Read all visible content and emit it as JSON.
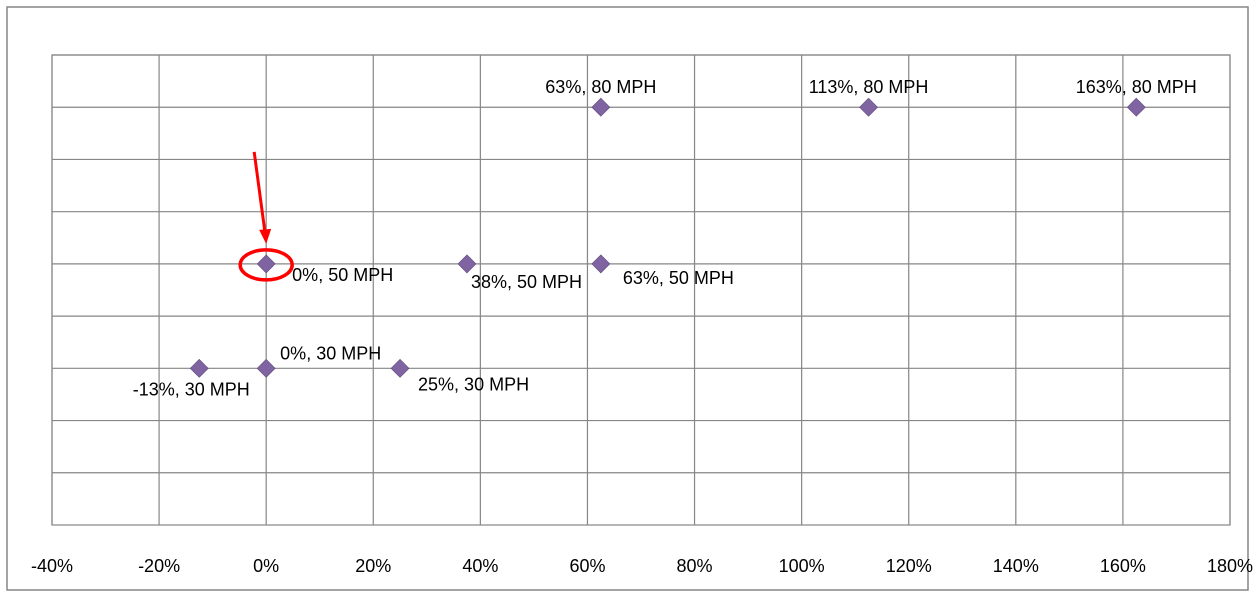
{
  "chart_data": {
    "type": "scatter",
    "title": "",
    "xlabel": "",
    "ylabel": "",
    "xlim": [
      -0.4,
      1.8
    ],
    "ylim": [
      0,
      90
    ],
    "x_ticks": [
      {
        "value": -0.4,
        "label": "-40%"
      },
      {
        "value": -0.2,
        "label": "-20%"
      },
      {
        "value": 0.0,
        "label": "0%"
      },
      {
        "value": 0.2,
        "label": "20%"
      },
      {
        "value": 0.4,
        "label": "40%"
      },
      {
        "value": 0.6,
        "label": "60%"
      },
      {
        "value": 0.8,
        "label": "80%"
      },
      {
        "value": 1.0,
        "label": "100%"
      },
      {
        "value": 1.2,
        "label": "120%"
      },
      {
        "value": 1.4,
        "label": "140%"
      },
      {
        "value": 1.6,
        "label": "160%"
      },
      {
        "value": 1.8,
        "label": "180%"
      }
    ],
    "y_gridlines": [
      10,
      20,
      30,
      40,
      50,
      60,
      70,
      80,
      90
    ],
    "grid": true,
    "legend": "none",
    "points": [
      {
        "x": 0.625,
        "y": 80,
        "label": "63%, 80 MPH"
      },
      {
        "x": 1.125,
        "y": 80,
        "label": "113%, 80 MPH"
      },
      {
        "x": 1.625,
        "y": 80,
        "label": "163%, 80 MPH"
      },
      {
        "x": 0.0,
        "y": 50,
        "label": "0%, 50 MPH",
        "highlighted": true
      },
      {
        "x": 0.375,
        "y": 50,
        "label": "38%, 50 MPH"
      },
      {
        "x": 0.625,
        "y": 50,
        "label": "63%, 50 MPH"
      },
      {
        "x": -0.125,
        "y": 30,
        "label": "-13%, 30 MPH"
      },
      {
        "x": 0.0,
        "y": 30,
        "label": "0%, 30 MPH"
      },
      {
        "x": 0.25,
        "y": 30,
        "label": "25%, 30 MPH"
      }
    ],
    "colors": {
      "marker": "#8064A2",
      "grid": "#868686",
      "highlight": "#FF0000"
    }
  }
}
